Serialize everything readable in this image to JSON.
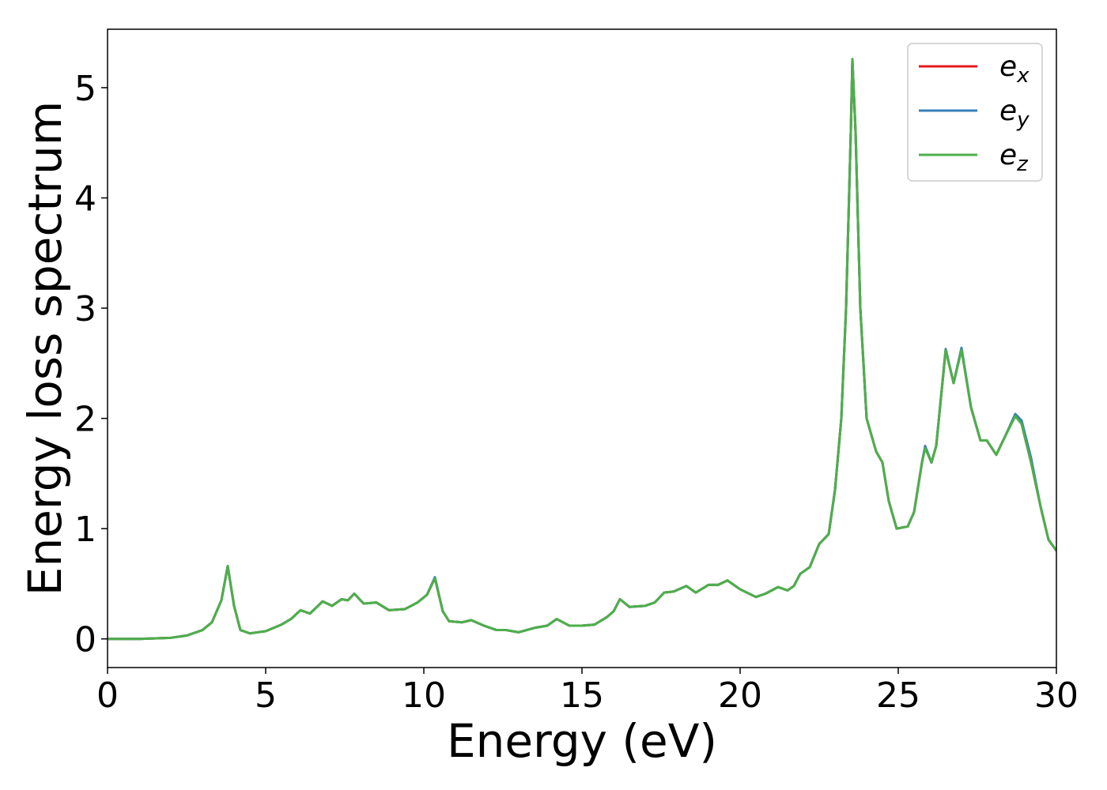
{
  "chart_data": {
    "type": "line",
    "xlabel": "Energy (eV)",
    "ylabel": "Energy loss spectrum",
    "xlim": [
      0,
      30
    ],
    "xticks": [
      0,
      5,
      10,
      15,
      20,
      25,
      30
    ],
    "ylim": [
      -0.26,
      5.53
    ],
    "yticks": [
      0,
      1,
      2,
      3,
      4,
      5
    ],
    "legend": "upper right",
    "grid": false,
    "x": [
      0,
      1,
      2,
      2.5,
      3,
      3.3,
      3.6,
      3.8,
      4.0,
      4.2,
      4.5,
      5,
      5.5,
      5.8,
      6.1,
      6.4,
      6.8,
      7.1,
      7.4,
      7.6,
      7.8,
      8.1,
      8.5,
      8.9,
      9.4,
      9.8,
      10.1,
      10.35,
      10.6,
      10.8,
      11.2,
      11.5,
      11.9,
      12.3,
      12.6,
      13.0,
      13.5,
      13.9,
      14.2,
      14.6,
      15.0,
      15.4,
      15.8,
      16.0,
      16.2,
      16.5,
      17.0,
      17.3,
      17.6,
      17.9,
      18.3,
      18.6,
      19.0,
      19.3,
      19.6,
      20.0,
      20.5,
      20.8,
      21.2,
      21.5,
      21.7,
      21.9,
      22.2,
      22.5,
      22.8,
      23.0,
      23.2,
      23.35,
      23.5,
      23.55,
      23.65,
      23.8,
      24.0,
      24.3,
      24.5,
      24.7,
      24.95,
      25.3,
      25.5,
      25.75,
      25.85,
      26.05,
      26.2,
      26.5,
      26.75,
      27.0,
      27.3,
      27.6,
      27.8,
      28.1,
      28.4,
      28.7,
      28.9,
      29.2,
      29.5,
      29.75,
      30
    ],
    "series": [
      {
        "name": "ex",
        "color": "#e41a1c",
        "values": [
          0,
          0,
          0.01,
          0.03,
          0.08,
          0.15,
          0.35,
          0.66,
          0.3,
          0.08,
          0.05,
          0.07,
          0.13,
          0.18,
          0.26,
          0.23,
          0.34,
          0.3,
          0.36,
          0.35,
          0.41,
          0.32,
          0.33,
          0.26,
          0.27,
          0.33,
          0.4,
          0.55,
          0.25,
          0.16,
          0.15,
          0.17,
          0.12,
          0.08,
          0.08,
          0.06,
          0.1,
          0.12,
          0.18,
          0.12,
          0.12,
          0.13,
          0.2,
          0.25,
          0.36,
          0.29,
          0.3,
          0.33,
          0.42,
          0.43,
          0.48,
          0.42,
          0.49,
          0.49,
          0.53,
          0.45,
          0.38,
          0.41,
          0.47,
          0.44,
          0.48,
          0.59,
          0.65,
          0.86,
          0.95,
          1.35,
          2.0,
          3.0,
          4.6,
          5.25,
          4.6,
          3.0,
          2.0,
          1.7,
          1.6,
          1.25,
          1.0,
          1.02,
          1.15,
          1.6,
          1.74,
          1.6,
          1.75,
          2.62,
          2.32,
          2.63,
          2.1,
          1.8,
          1.8,
          1.67,
          1.85,
          2.03,
          1.95,
          1.6,
          1.2,
          0.9,
          0.8
        ]
      },
      {
        "name": "ey",
        "color": "#377eb8",
        "values": [
          0,
          0,
          0.01,
          0.03,
          0.08,
          0.15,
          0.35,
          0.66,
          0.3,
          0.08,
          0.05,
          0.07,
          0.13,
          0.18,
          0.26,
          0.23,
          0.34,
          0.3,
          0.36,
          0.35,
          0.41,
          0.32,
          0.33,
          0.26,
          0.27,
          0.33,
          0.4,
          0.56,
          0.25,
          0.16,
          0.15,
          0.17,
          0.12,
          0.08,
          0.08,
          0.06,
          0.1,
          0.12,
          0.18,
          0.12,
          0.12,
          0.13,
          0.2,
          0.25,
          0.36,
          0.29,
          0.3,
          0.33,
          0.42,
          0.43,
          0.48,
          0.42,
          0.49,
          0.49,
          0.53,
          0.45,
          0.38,
          0.41,
          0.47,
          0.44,
          0.48,
          0.59,
          0.65,
          0.86,
          0.95,
          1.35,
          2.0,
          3.0,
          4.6,
          5.25,
          4.6,
          3.0,
          2.0,
          1.7,
          1.6,
          1.25,
          1.0,
          1.02,
          1.15,
          1.6,
          1.75,
          1.6,
          1.75,
          2.63,
          2.32,
          2.64,
          2.1,
          1.8,
          1.8,
          1.67,
          1.85,
          2.04,
          1.98,
          1.64,
          1.2,
          0.9,
          0.8
        ]
      },
      {
        "name": "ez",
        "color": "#4daf4a",
        "values": [
          0,
          0,
          0.01,
          0.03,
          0.08,
          0.15,
          0.35,
          0.66,
          0.3,
          0.08,
          0.05,
          0.07,
          0.13,
          0.18,
          0.26,
          0.23,
          0.34,
          0.3,
          0.36,
          0.35,
          0.41,
          0.32,
          0.33,
          0.26,
          0.27,
          0.33,
          0.4,
          0.55,
          0.25,
          0.16,
          0.15,
          0.17,
          0.12,
          0.08,
          0.08,
          0.06,
          0.1,
          0.12,
          0.18,
          0.12,
          0.12,
          0.13,
          0.2,
          0.25,
          0.36,
          0.29,
          0.3,
          0.33,
          0.42,
          0.43,
          0.48,
          0.42,
          0.49,
          0.49,
          0.53,
          0.45,
          0.38,
          0.41,
          0.47,
          0.44,
          0.48,
          0.59,
          0.65,
          0.86,
          0.95,
          1.35,
          2.0,
          3.0,
          4.6,
          5.26,
          4.6,
          3.0,
          2.0,
          1.7,
          1.6,
          1.25,
          1.0,
          1.02,
          1.15,
          1.6,
          1.73,
          1.6,
          1.75,
          2.62,
          2.32,
          2.62,
          2.1,
          1.8,
          1.8,
          1.67,
          1.85,
          2.02,
          1.95,
          1.6,
          1.2,
          0.9,
          0.8
        ]
      }
    ]
  }
}
